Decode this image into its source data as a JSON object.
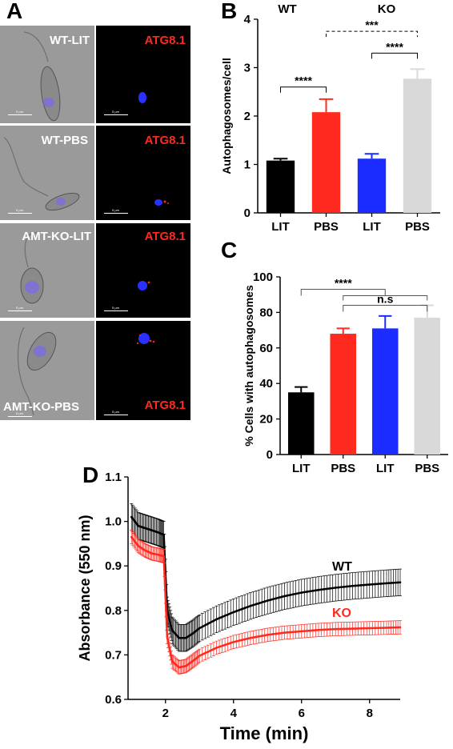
{
  "panel_letters": {
    "a": "A",
    "b": "B",
    "c": "C",
    "d": "D"
  },
  "micrographs": {
    "rows": [
      {
        "left_label": "WT-LIT",
        "right_label": "ATG8.1",
        "scale": "5 µm"
      },
      {
        "left_label": "WT-PBS",
        "right_label": "ATG8.1",
        "scale": "5 µm"
      },
      {
        "left_label": "AMT-KO-LIT",
        "right_label": "ATG8.1",
        "scale": "5 µm"
      },
      {
        "left_label": "AMT-KO-PBS",
        "right_label": "ATG8.1",
        "scale": "5 µm"
      }
    ],
    "colors": {
      "brightfield": "#9a9a9a",
      "dapi": "#3030ff",
      "atg8": "#ff2a1f"
    }
  },
  "chart_data": [
    {
      "id": "B",
      "type": "bar",
      "categories": [
        "LIT",
        "PBS",
        "LIT",
        "PBS"
      ],
      "values": [
        1.08,
        2.08,
        1.12,
        2.77
      ],
      "errors": [
        0.04,
        0.27,
        0.1,
        0.2
      ],
      "colors": [
        "#000000",
        "#ff2a1f",
        "#1a2cff",
        "#d9d9d9"
      ],
      "ylabel": "Autophagosomes/cell",
      "ylim": [
        0,
        4
      ],
      "yticks": [
        0,
        1,
        2,
        3,
        4
      ],
      "group_labels": [
        "WT",
        "KO"
      ],
      "significance": [
        {
          "from": 0,
          "to": 1,
          "label": "****",
          "style": "solid"
        },
        {
          "from": 2,
          "to": 3,
          "label": "****",
          "style": "solid"
        },
        {
          "from": 1,
          "to": 3,
          "label": "***",
          "style": "dashed"
        }
      ]
    },
    {
      "id": "C",
      "type": "bar",
      "categories": [
        "LIT",
        "PBS",
        "LIT",
        "PBS"
      ],
      "values": [
        35,
        68,
        71,
        77
      ],
      "errors": [
        3,
        3,
        7,
        7
      ],
      "colors": [
        "#000000",
        "#ff2a1f",
        "#1a2cff",
        "#d9d9d9"
      ],
      "ylabel": "% Cells with autophagosomes",
      "ylim": [
        0,
        100
      ],
      "yticks": [
        0,
        20,
        40,
        60,
        80,
        100
      ],
      "significance": [
        {
          "from": 0,
          "to_group": [
            1,
            2,
            3
          ],
          "label": "****"
        },
        {
          "from": 1,
          "to": 3,
          "label": "n.s"
        }
      ]
    },
    {
      "id": "D",
      "type": "line",
      "xlabel": "Time (min)",
      "ylabel": "Absorbance (550 nm)",
      "xlim": [
        0.9,
        8.9
      ],
      "ylim": [
        0.6,
        1.1
      ],
      "xticks": [
        2,
        4,
        6,
        8
      ],
      "yticks": [
        0.6,
        0.7,
        0.8,
        0.9,
        1.0,
        1.1
      ],
      "series": [
        {
          "name": "WT",
          "color": "#000000",
          "x": [
            1.0,
            1.2,
            1.4,
            1.6,
            1.8,
            1.95,
            2.05,
            2.2,
            2.4,
            2.6,
            2.8,
            3.0,
            3.5,
            4.0,
            4.5,
            5.0,
            5.5,
            6.0,
            6.5,
            7.0,
            7.5,
            8.0,
            8.5,
            8.9
          ],
          "y": [
            1.01,
            0.99,
            0.985,
            0.98,
            0.975,
            0.97,
            0.8,
            0.755,
            0.738,
            0.738,
            0.748,
            0.76,
            0.78,
            0.796,
            0.81,
            0.822,
            0.832,
            0.84,
            0.846,
            0.851,
            0.855,
            0.858,
            0.861,
            0.863
          ],
          "error": 0.03
        },
        {
          "name": "KO",
          "color": "#ff2a1f",
          "x": [
            1.0,
            1.2,
            1.4,
            1.6,
            1.8,
            1.95,
            2.05,
            2.2,
            2.4,
            2.6,
            2.8,
            3.0,
            3.5,
            4.0,
            4.5,
            5.0,
            5.5,
            6.0,
            6.5,
            7.0,
            7.5,
            8.0,
            8.5,
            8.9
          ],
          "y": [
            0.965,
            0.945,
            0.935,
            0.928,
            0.925,
            0.922,
            0.74,
            0.685,
            0.672,
            0.675,
            0.686,
            0.698,
            0.716,
            0.729,
            0.738,
            0.745,
            0.75,
            0.753,
            0.756,
            0.758,
            0.759,
            0.76,
            0.761,
            0.762
          ],
          "error": 0.015
        }
      ]
    }
  ]
}
